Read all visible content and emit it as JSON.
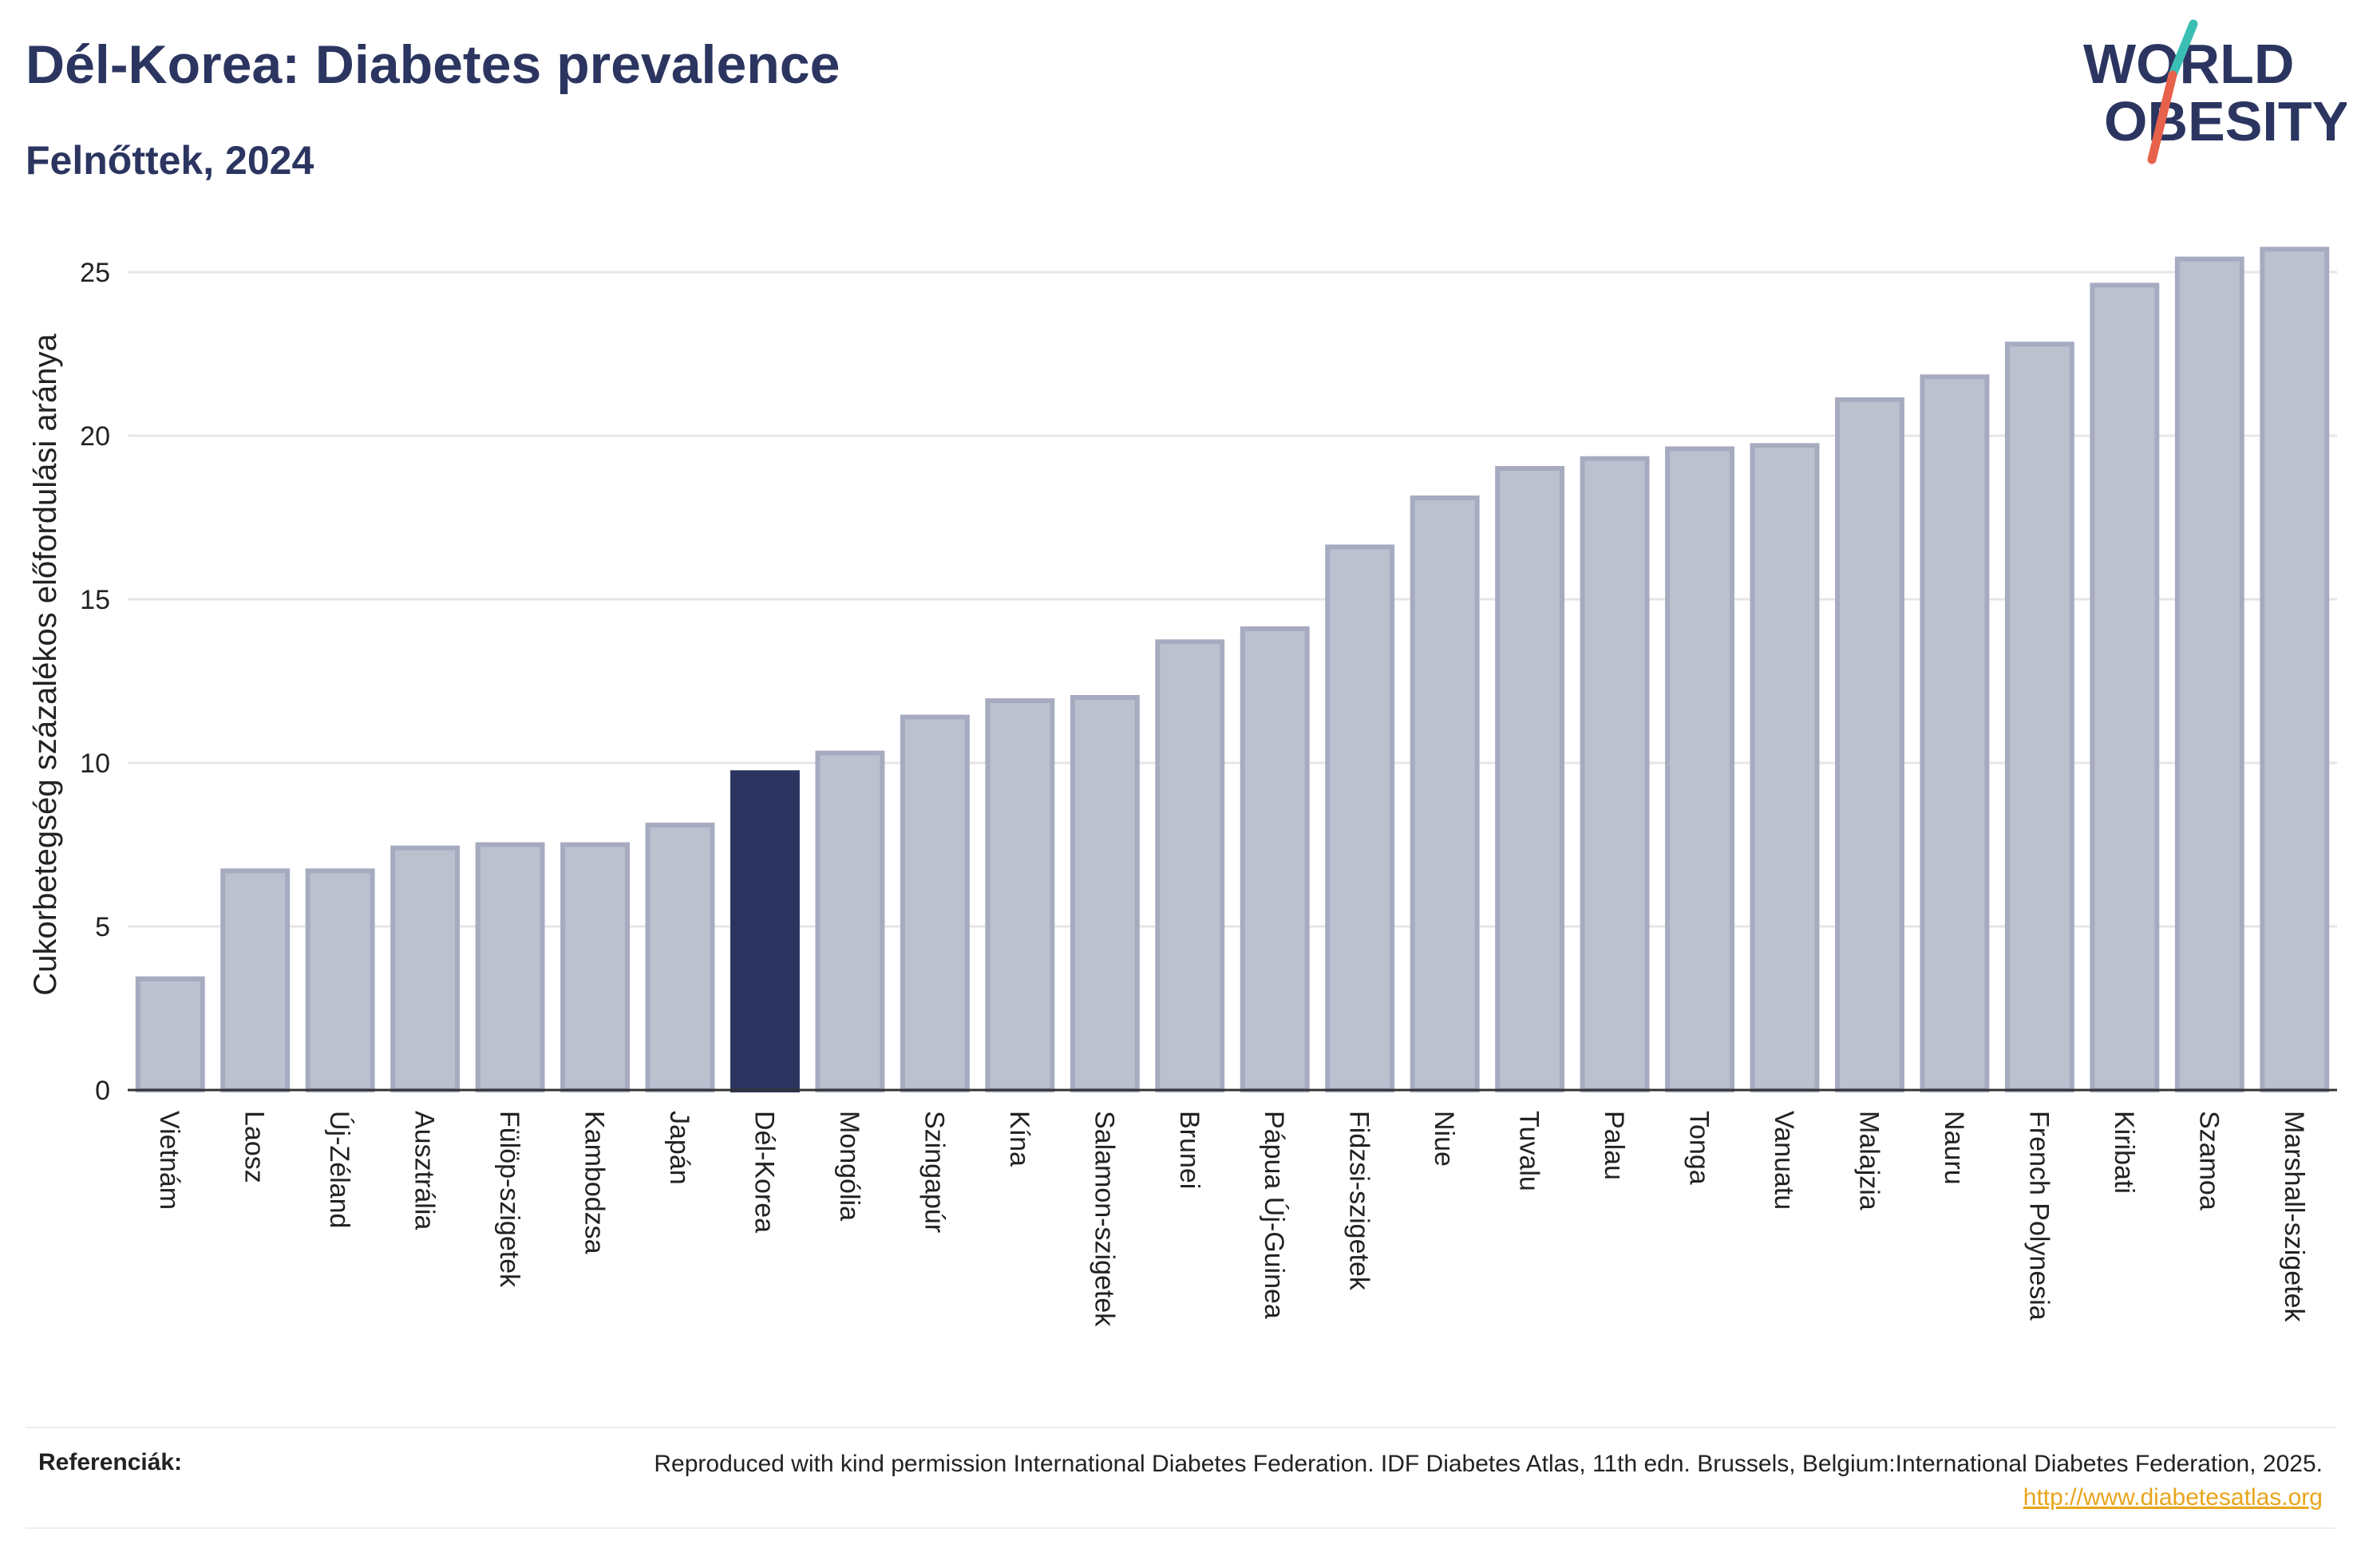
{
  "header": {
    "title": "Dél-Korea: Diabetes prevalence",
    "subtitle": "Felnőttek, 2024"
  },
  "logo": {
    "line1": "WORLD",
    "line2": "OBESITY",
    "slash_colors": [
      "#3bbfb4",
      "#e8614a"
    ]
  },
  "colors": {
    "bar": "#bcc0cf",
    "bar_border": "#a6abc0",
    "highlight": "#2b3560",
    "grid": "#e6e6e6",
    "axis": "#333333"
  },
  "chart_data": {
    "type": "bar",
    "ylabel": "Cukorbetegség százalékos előfordulási aránya",
    "ylim": [
      0,
      26
    ],
    "yticks": [
      0,
      5,
      10,
      15,
      20,
      25
    ],
    "grid": true,
    "highlight": "Dél-Korea",
    "categories": [
      "Vietnám",
      "Laosz",
      "Új-Zéland",
      "Ausztrália",
      "Fülöp-szigetek",
      "Kambodzsa",
      "Japán",
      "Dél-Korea",
      "Mongólia",
      "Szingapúr",
      "Kína",
      "Salamon-szigetek",
      "Brunei",
      "Pápua Új-Guinea",
      "Fidzsi-szigetek",
      "Niue",
      "Tuvalu",
      "Palau",
      "Tonga",
      "Vanuatu",
      "Malajzia",
      "Nauru",
      "French Polynesia",
      "Kiribati",
      "Szamoa",
      "Marshall-szigetek"
    ],
    "values": [
      3.4,
      6.7,
      6.7,
      7.4,
      7.5,
      7.5,
      8.1,
      9.7,
      10.3,
      11.4,
      11.9,
      12.0,
      13.7,
      14.1,
      16.6,
      18.1,
      19.0,
      19.3,
      19.6,
      19.7,
      21.1,
      21.8,
      22.8,
      24.6,
      25.4,
      25.7
    ]
  },
  "references": {
    "label": "Referenciák:",
    "text": "Reproduced with kind permission International Diabetes Federation. IDF Diabetes Atlas, 11th edn. Brussels, Belgium:International Diabetes Federation, 2025.",
    "link": "http://www.diabetesatlas.org"
  }
}
